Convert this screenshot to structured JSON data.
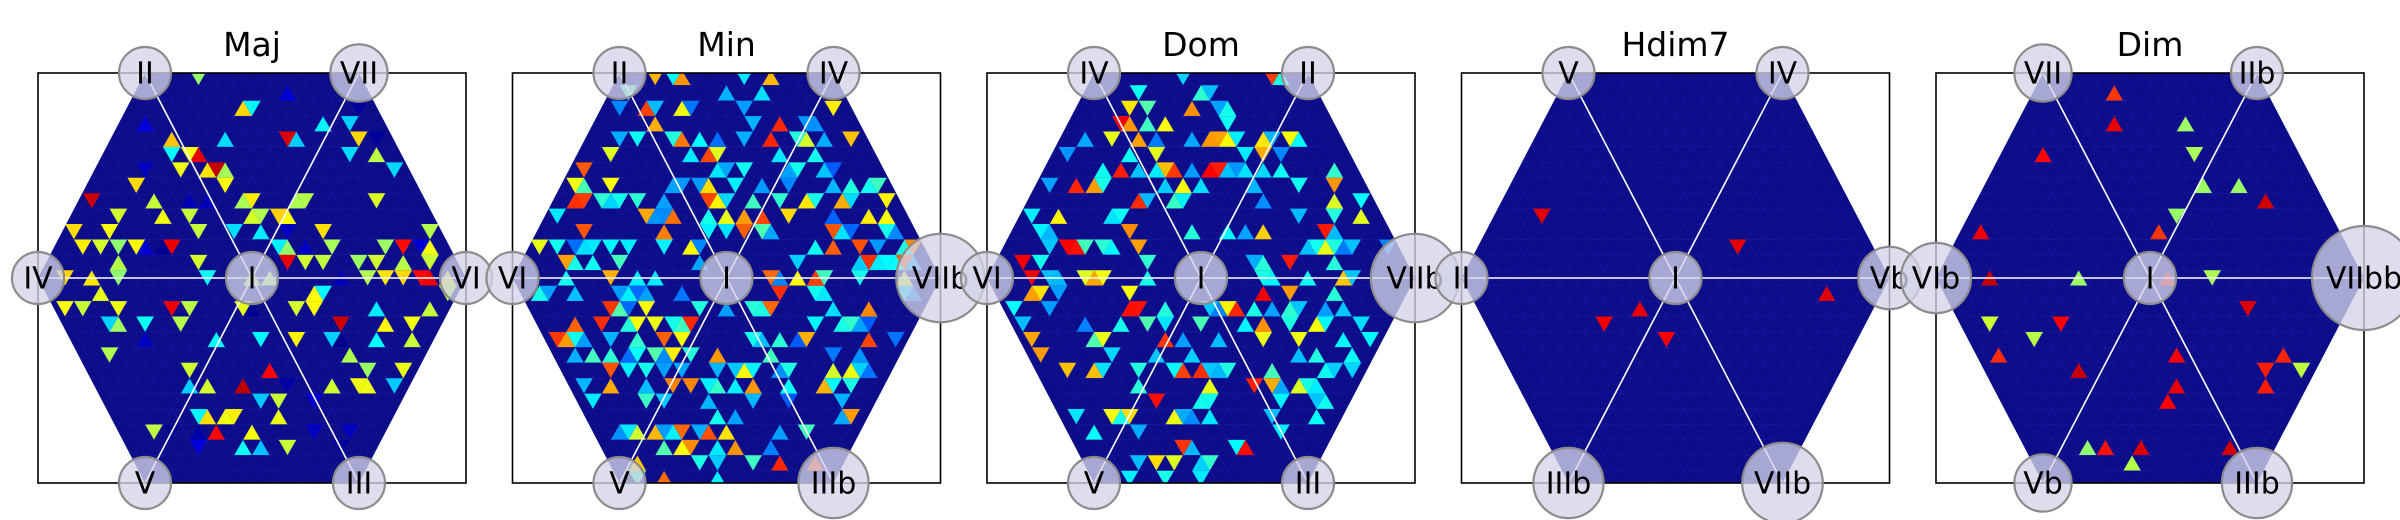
{
  "chart_data": [
    {
      "type": "heatmap",
      "title": "Maj",
      "nodes": {
        "center": "I",
        "top_left": "II",
        "top_right": "VII",
        "left": "IV",
        "right": "VI",
        "bottom_left": "V",
        "bottom_right": "III"
      },
      "node_weights": {
        "center": 1,
        "top_left": 1,
        "top_right": 1.1,
        "left": 1,
        "right": 1,
        "bottom_left": 1,
        "bottom_right": 1
      },
      "hot_sectors": [
        "top_left",
        "top_right",
        "left",
        "bottom_left",
        "bottom_right"
      ],
      "density": 0.16,
      "cell_values": [
        0.55,
        0.6,
        0.65,
        0.55,
        0.05,
        0.9,
        0.35
      ],
      "colorscale": [
        "#00007f",
        "#0000ff",
        "#0080ff",
        "#00ffff",
        "#7fff7f",
        "#ffff00",
        "#ff8000",
        "#ff0000",
        "#7f0000"
      ]
    },
    {
      "type": "heatmap",
      "title": "Min",
      "nodes": {
        "center": "I",
        "top_left": "II",
        "top_right": "IV",
        "left": "VI",
        "right": "VIIb",
        "bottom_left": "V",
        "bottom_right": "IIIb"
      },
      "node_weights": {
        "center": 1,
        "top_left": 1,
        "top_right": 1,
        "left": 1,
        "right": 1.7,
        "bottom_left": 1,
        "bottom_right": 1.35
      },
      "hot_sectors": [
        "top_left",
        "top_right",
        "left",
        "right",
        "bottom_left",
        "bottom_right"
      ],
      "density": 0.34,
      "cell_values": [
        0.25,
        0.32,
        0.38,
        0.3,
        0.42,
        0.62,
        0.72,
        0.8
      ],
      "colorscale": [
        "#00007f",
        "#0000ff",
        "#0080ff",
        "#00ffff",
        "#7fff7f",
        "#ffff00",
        "#ff8000",
        "#ff0000",
        "#7f0000"
      ]
    },
    {
      "type": "heatmap",
      "title": "Dom",
      "nodes": {
        "center": "I",
        "top_left": "IV",
        "top_right": "II",
        "left": "VI",
        "right": "VIIb",
        "bottom_left": "V",
        "bottom_right": "III"
      },
      "node_weights": {
        "center": 1,
        "top_left": 1,
        "top_right": 1,
        "left": 1,
        "right": 1.7,
        "bottom_left": 1,
        "bottom_right": 1
      },
      "hot_sectors": [
        "top_left",
        "top_right",
        "left",
        "right",
        "bottom_left",
        "bottom_right"
      ],
      "density": 0.3,
      "cell_values": [
        0.28,
        0.33,
        0.38,
        0.35,
        0.42,
        0.62,
        0.7,
        0.85
      ],
      "colorscale": [
        "#00007f",
        "#0000ff",
        "#0080ff",
        "#00ffff",
        "#7fff7f",
        "#ffff00",
        "#ff8000",
        "#ff0000",
        "#7f0000"
      ]
    },
    {
      "type": "heatmap",
      "title": "Hdim7",
      "nodes": {
        "center": "I",
        "top_left": "V",
        "top_right": "IV",
        "left": "II",
        "right": "Vb",
        "bottom_left": "IIIb",
        "bottom_right": "VIIb"
      },
      "node_weights": {
        "center": 1,
        "top_left": 1,
        "top_right": 1,
        "left": 1,
        "right": 1.2,
        "bottom_left": 1.35,
        "bottom_right": 1.55
      },
      "hot_sectors": [
        "top_left",
        "top_right",
        "left",
        "right",
        "bottom_left",
        "bottom_right"
      ],
      "density": 0.006,
      "cell_values": [
        0.88,
        0.92
      ],
      "colorscale": [
        "#00007f",
        "#0000ff",
        "#0080ff",
        "#00ffff",
        "#7fff7f",
        "#ffff00",
        "#ff8000",
        "#ff0000",
        "#7f0000"
      ]
    },
    {
      "type": "heatmap",
      "title": "Dim",
      "nodes": {
        "center": "I",
        "top_left": "VII",
        "top_right": "IIb",
        "left": "VIb",
        "right": "VIIbb",
        "bottom_left": "Vb",
        "bottom_right": "IIIb"
      },
      "node_weights": {
        "center": 1,
        "top_left": 1.1,
        "top_right": 1,
        "left": 1.35,
        "right": 2,
        "bottom_left": 1.1,
        "bottom_right": 1.35
      },
      "hot_sectors": [
        "top_left",
        "top_right",
        "left",
        "right",
        "bottom_left",
        "bottom_right"
      ],
      "density": 0.04,
      "cell_values": [
        0.88,
        0.9,
        0.85,
        0.55
      ],
      "colorscale": [
        "#00007f",
        "#0000ff",
        "#0080ff",
        "#00ffff",
        "#7fff7f",
        "#ffff00",
        "#ff8000",
        "#ff0000",
        "#7f0000"
      ]
    }
  ]
}
